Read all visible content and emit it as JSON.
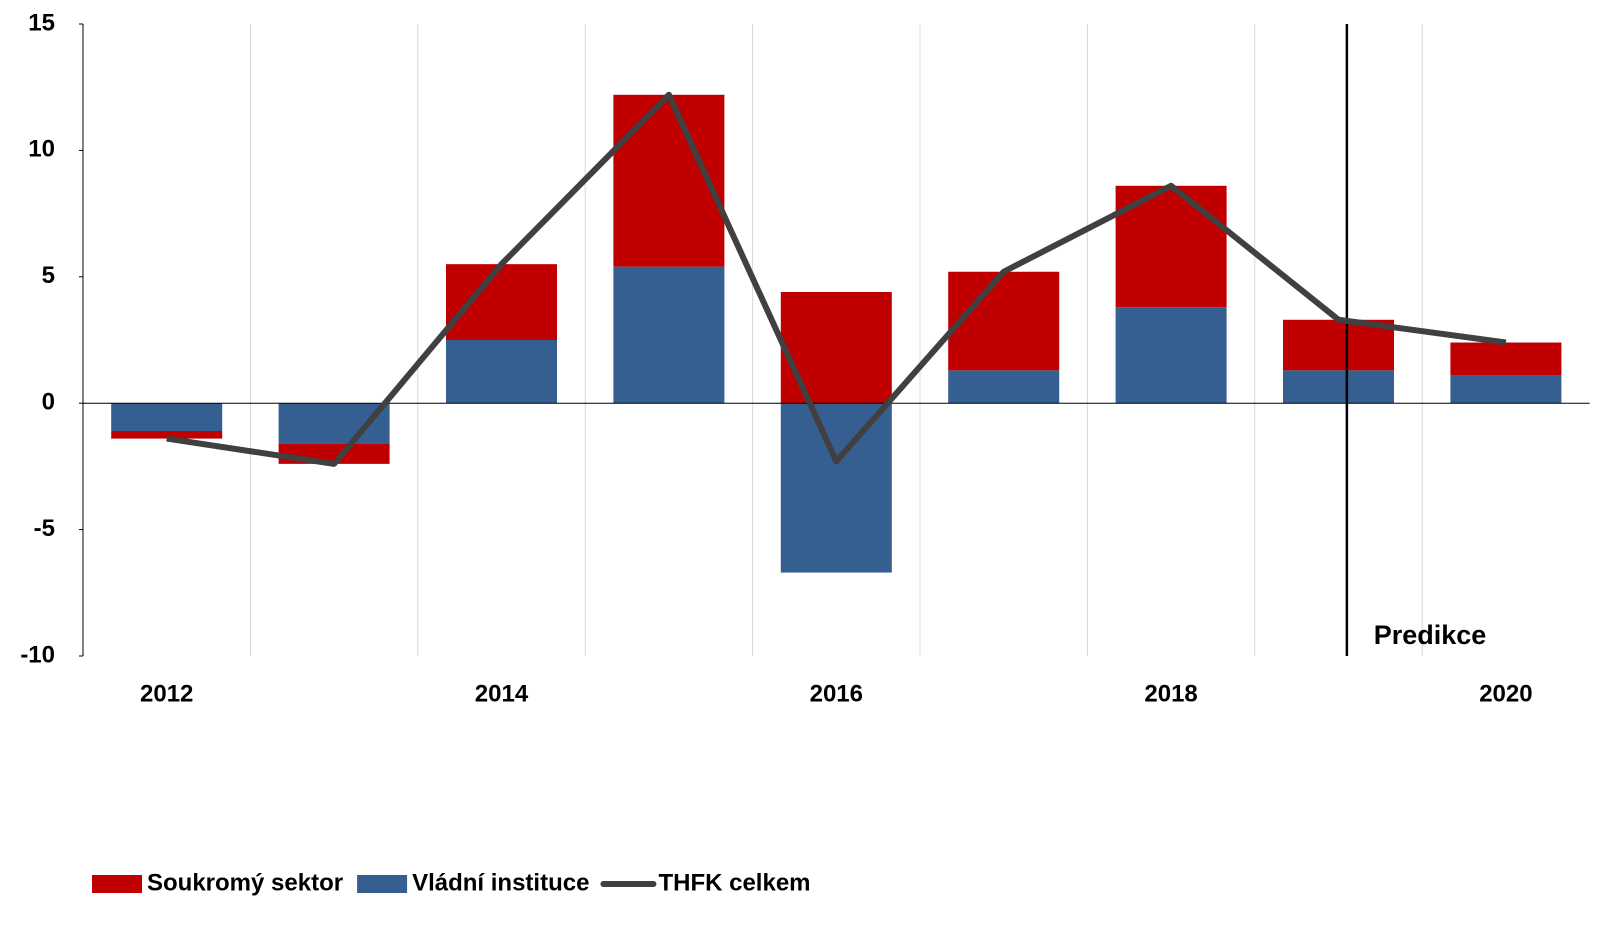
{
  "chart_data": {
    "type": "bar",
    "categories": [
      "2012",
      null,
      "2014",
      null,
      "2016",
      null,
      "2018",
      null,
      "2020"
    ],
    "series": [
      {
        "name": "Soukromý sektor",
        "color": "#c00000",
        "type": "bar",
        "values": [
          -0.3,
          -0.8,
          3.0,
          6.8,
          4.4,
          3.9,
          4.8,
          2.0,
          1.3
        ]
      },
      {
        "name": "Vládní instituce",
        "color": "#355f91",
        "type": "bar",
        "values": [
          -1.1,
          -1.6,
          2.5,
          5.4,
          -6.7,
          1.3,
          3.8,
          1.3,
          1.1
        ]
      },
      {
        "name": "THFK celkem",
        "color": "#404040",
        "type": "line",
        "values": [
          -1.4,
          -2.4,
          5.5,
          12.2,
          -2.3,
          5.2,
          8.6,
          3.3,
          2.4
        ]
      }
    ],
    "annotations": [
      "Predikce"
    ],
    "ylim": [
      -10,
      15
    ],
    "yticks": [
      -10,
      -5,
      0,
      5,
      10,
      15
    ],
    "grid": true,
    "legend": "bottom"
  }
}
